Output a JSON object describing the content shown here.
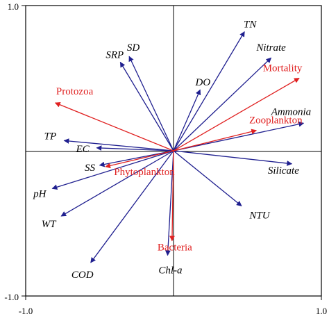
{
  "chart_data": {
    "type": "biplot",
    "xlim": [
      -1.0,
      1.0
    ],
    "ylim": [
      -1.0,
      1.0
    ],
    "tick_labels": {
      "x_min": "-1.0",
      "x_max": "1.0",
      "y_min": "-1.0",
      "y_max": "1.0"
    },
    "colors": {
      "environmental": "#1f1f8f",
      "biological": "#e02020",
      "axes": "#000000"
    },
    "environmental_vectors": [
      {
        "label": "TN",
        "x": 0.48,
        "y": 0.82
      },
      {
        "label": "Nitrate",
        "x": 0.66,
        "y": 0.64
      },
      {
        "label": "SD",
        "x": -0.3,
        "y": 0.65
      },
      {
        "label": "SRP",
        "x": -0.36,
        "y": 0.61
      },
      {
        "label": "DO",
        "x": 0.18,
        "y": 0.42
      },
      {
        "label": "Ammonia",
        "x": 0.88,
        "y": 0.19
      },
      {
        "label": "TP",
        "x": -0.74,
        "y": 0.07
      },
      {
        "label": "EC",
        "x": -0.52,
        "y": 0.02
      },
      {
        "label": "SS",
        "x": -0.5,
        "y": -0.1
      },
      {
        "label": "Silicate",
        "x": 0.8,
        "y": -0.09
      },
      {
        "label": "pH",
        "x": -0.82,
        "y": -0.26
      },
      {
        "label": "WT",
        "x": -0.76,
        "y": -0.45
      },
      {
        "label": "NTU",
        "x": 0.46,
        "y": -0.38
      },
      {
        "label": "COD",
        "x": -0.56,
        "y": -0.77
      },
      {
        "label": "Chl-a",
        "x": -0.04,
        "y": -0.72
      }
    ],
    "biological_vectors": [
      {
        "label": "Mortality",
        "x": 0.85,
        "y": 0.5
      },
      {
        "label": "Protozoa",
        "x": -0.8,
        "y": 0.33
      },
      {
        "label": "Zooplankton",
        "x": 0.56,
        "y": 0.14
      },
      {
        "label": "Phytoplankton",
        "x": -0.46,
        "y": -0.11
      },
      {
        "label": "Bacteria",
        "x": -0.01,
        "y": -0.62
      }
    ]
  }
}
